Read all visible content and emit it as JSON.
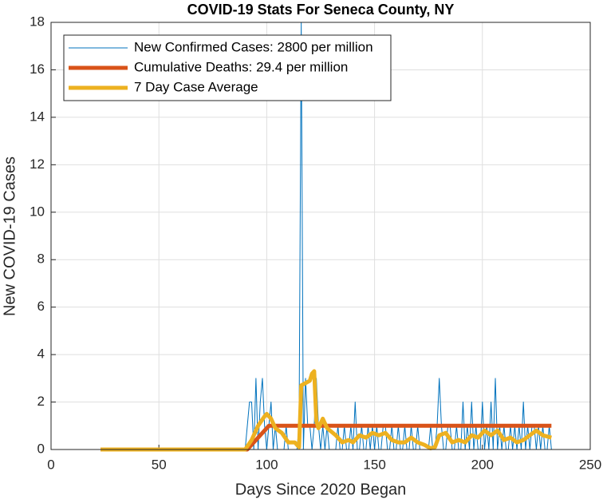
{
  "chart_data": {
    "type": "line",
    "title": "COVID-19 Stats For Seneca County, NY",
    "x_label": "Days Since 2020 Began",
    "y_label": "New COVID-19 Cases",
    "xlim": [
      0,
      250
    ],
    "xticks": [
      0,
      50,
      100,
      150,
      200,
      250
    ],
    "ylim": [
      0,
      18
    ],
    "yticks": [
      0,
      2,
      4,
      6,
      8,
      10,
      12,
      14,
      16,
      18
    ],
    "grid": true,
    "legend": "northwest",
    "series": [
      {
        "name": "New Confirmed Cases: 2800 per million",
        "color": "#0072BD",
        "width": 1,
        "x": [
          23,
          89,
          90,
          91,
          92,
          93,
          94,
          95,
          96,
          97,
          98,
          99,
          100,
          101,
          102,
          103,
          104,
          105,
          106,
          107,
          108,
          109,
          110,
          111,
          112,
          113,
          114,
          115,
          116,
          117,
          118,
          119,
          120,
          121,
          122,
          123,
          124,
          125,
          126,
          127,
          128,
          129,
          130,
          131,
          132,
          133,
          134,
          135,
          136,
          137,
          138,
          139,
          140,
          141,
          142,
          143,
          144,
          145,
          146,
          147,
          148,
          149,
          150,
          151,
          152,
          153,
          154,
          155,
          156,
          157,
          158,
          159,
          160,
          161,
          162,
          163,
          164,
          165,
          166,
          167,
          168,
          169,
          170,
          171,
          172,
          173,
          174,
          175,
          176,
          177,
          178,
          179,
          180,
          181,
          182,
          183,
          184,
          185,
          186,
          187,
          188,
          189,
          190,
          191,
          192,
          193,
          194,
          195,
          196,
          197,
          198,
          199,
          200,
          201,
          202,
          203,
          204,
          205,
          206,
          207,
          208,
          209,
          210,
          211,
          212,
          213,
          214,
          215,
          216,
          217,
          218,
          219,
          220,
          221,
          222,
          223,
          224,
          225,
          226,
          227,
          228,
          229,
          230,
          231,
          232
        ],
        "values": [
          0,
          0,
          0,
          1,
          2,
          2,
          0,
          3,
          0,
          2,
          3,
          1,
          0,
          1,
          2,
          0,
          1,
          0,
          0,
          0,
          0,
          1,
          0,
          0,
          0,
          0,
          0,
          1,
          18,
          0,
          3,
          1,
          1,
          0,
          1,
          3,
          1,
          0,
          1,
          0,
          1,
          0,
          0,
          0,
          0,
          1,
          0,
          0,
          1,
          0,
          0,
          1,
          0,
          2,
          0,
          0,
          1,
          0,
          0,
          1,
          0,
          1,
          0,
          1,
          0,
          0,
          1,
          1,
          0,
          0,
          1,
          0,
          0,
          1,
          0,
          0,
          1,
          0,
          0,
          1,
          0,
          0,
          1,
          0,
          0,
          0,
          0,
          0,
          1,
          0,
          0,
          1,
          3,
          1,
          0,
          0,
          1,
          1,
          0,
          0,
          1,
          0,
          0,
          2,
          0,
          1,
          0,
          2,
          0,
          1,
          0,
          0,
          2,
          0,
          1,
          0,
          2,
          0,
          3,
          0,
          1,
          0,
          1,
          0,
          0,
          1,
          0,
          1,
          0,
          1,
          0,
          2,
          0,
          1,
          0,
          1,
          1,
          0,
          1,
          0,
          1,
          0,
          0,
          1,
          0
        ]
      },
      {
        "name": "Cumulative Deaths: 29.4 per million",
        "color": "#D95319",
        "width": 5,
        "x": [
          23,
          91,
          101,
          232
        ],
        "values": [
          0,
          0,
          1,
          1
        ]
      },
      {
        "name": "7 Day Case Average",
        "color": "#EDB120",
        "width": 5,
        "x": [
          23,
          90,
          93,
          96,
          99,
          100,
          102,
          104,
          107,
          110,
          113,
          115,
          116,
          118,
          120,
          121,
          122,
          123,
          124,
          126,
          128,
          132,
          135,
          138,
          140,
          143,
          146,
          149,
          152,
          155,
          158,
          161,
          164,
          167,
          170,
          173,
          176,
          178,
          180,
          183,
          186,
          189,
          192,
          195,
          198,
          201,
          204,
          207,
          210,
          213,
          216,
          219,
          222,
          225,
          228,
          232
        ],
        "values": [
          0,
          0,
          0.4,
          1.0,
          1.4,
          1.5,
          1.3,
          0.9,
          0.7,
          0.3,
          0.3,
          0.1,
          2.7,
          2.8,
          2.9,
          3.2,
          3.3,
          1.2,
          0.9,
          1.3,
          0.9,
          0.6,
          0.3,
          0.4,
          0.3,
          0.6,
          0.5,
          0.7,
          0.6,
          0.7,
          0.4,
          0.3,
          0.3,
          0.5,
          0.3,
          0.2,
          0.05,
          0.1,
          0.6,
          0.7,
          0.3,
          0.4,
          0.3,
          0.6,
          0.5,
          0.8,
          0.6,
          0.8,
          0.4,
          0.5,
          0.3,
          0.4,
          0.6,
          0.8,
          0.6,
          0.5
        ]
      }
    ]
  }
}
